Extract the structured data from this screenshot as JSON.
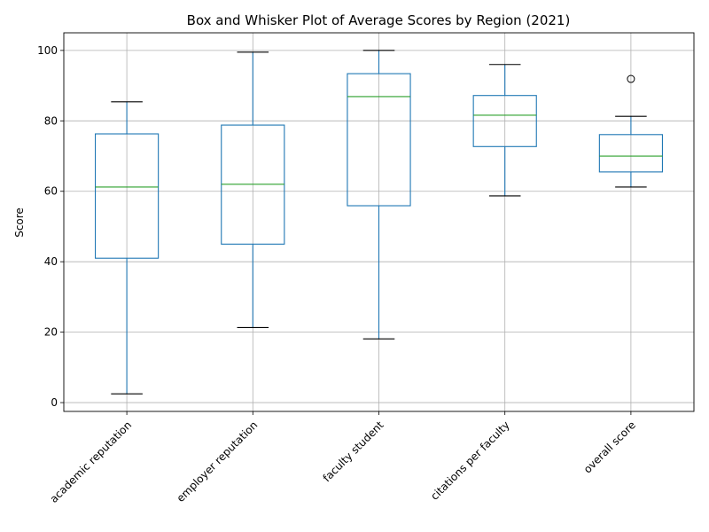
{
  "chart_data": {
    "type": "box",
    "title": "Box and Whisker Plot of Average Scores by Region (2021)",
    "xlabel": "",
    "ylabel": "Score",
    "ylim": [
      -2.5,
      105
    ],
    "yticks": [
      0,
      20,
      40,
      60,
      80,
      100
    ],
    "grid": true,
    "categories": [
      "academic reputation",
      "employer reputation",
      "faculty student",
      "citations per faculty",
      "overall score"
    ],
    "boxes": [
      {
        "whisker_low": 2.5,
        "q1": 41.0,
        "median": 61.2,
        "q3": 76.3,
        "whisker_high": 85.4,
        "outliers": []
      },
      {
        "whisker_low": 21.3,
        "q1": 45.0,
        "median": 62.0,
        "q3": 78.8,
        "whisker_high": 99.5,
        "outliers": []
      },
      {
        "whisker_low": 18.1,
        "q1": 55.9,
        "median": 86.9,
        "q3": 93.4,
        "whisker_high": 100.0,
        "outliers": []
      },
      {
        "whisker_low": 58.7,
        "q1": 72.7,
        "median": 81.6,
        "q3": 87.2,
        "whisker_high": 96.0,
        "outliers": []
      },
      {
        "whisker_low": 61.2,
        "q1": 65.5,
        "median": 70.0,
        "q3": 76.1,
        "whisker_high": 81.3,
        "outliers": [
          91.9
        ]
      }
    ],
    "colors": {
      "box": "#1f77b4",
      "median": "#2ca02c",
      "whisker_cap": "#000000",
      "grid": "#b0b0b0"
    }
  }
}
